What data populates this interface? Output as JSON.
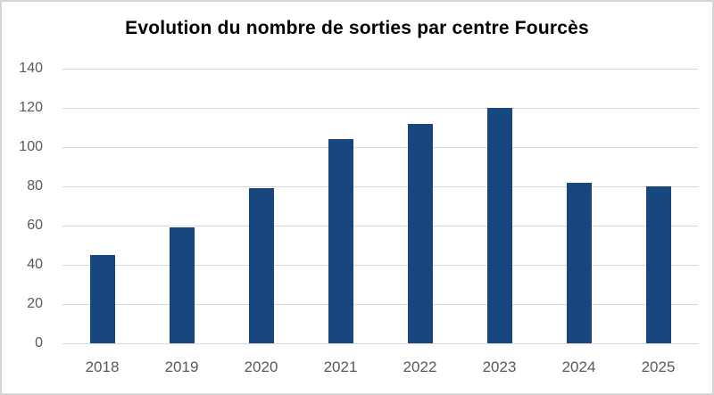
{
  "window": {
    "background": "#ffffff",
    "border_color": "#d6d6d6"
  },
  "chart_data": {
    "type": "bar",
    "title": "Evolution du nombre de sorties par centre Fourcès",
    "categories": [
      "2018",
      "2019",
      "2020",
      "2021",
      "2022",
      "2023",
      "2024",
      "2025"
    ],
    "values": [
      45,
      59,
      79,
      104,
      112,
      120,
      82,
      80
    ],
    "xlabel": "",
    "ylabel": "",
    "ylim": [
      0,
      140
    ],
    "ytick_step": 20,
    "ytick_labels": [
      "0",
      "20",
      "40",
      "60",
      "80",
      "100",
      "120",
      "140"
    ],
    "grid": "horizontal",
    "legend": "none",
    "colors": {
      "bar": "#17477E",
      "gridline": "#D9D9D9",
      "tick_label": "#595959",
      "title": "#000000"
    }
  }
}
